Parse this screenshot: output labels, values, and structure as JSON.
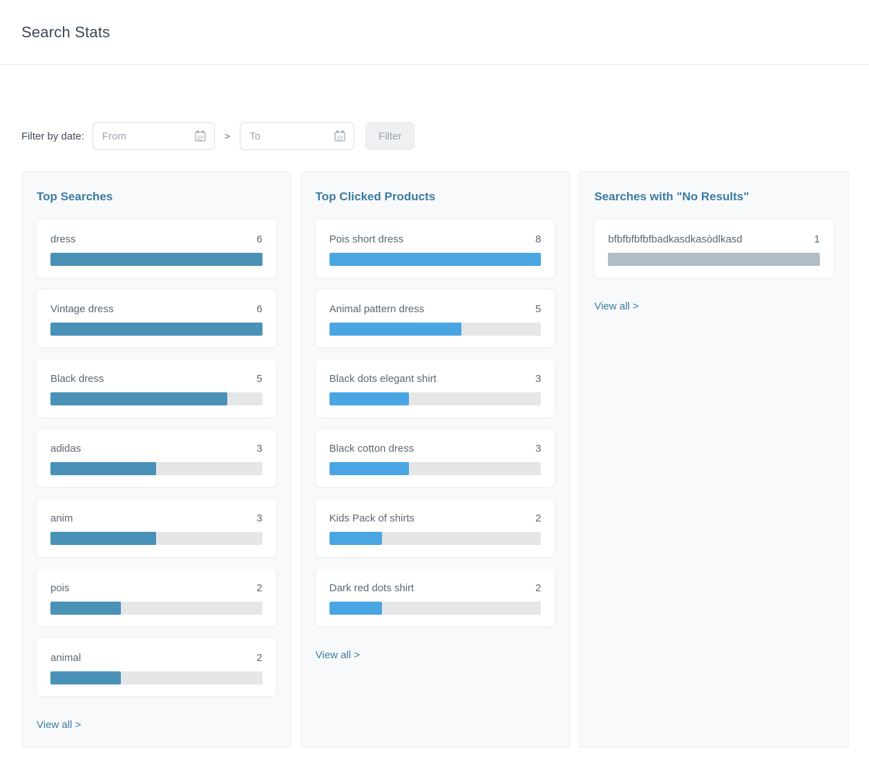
{
  "header": {
    "title": "Search Stats"
  },
  "filter": {
    "label": "Filter by date:",
    "from_placeholder": "From",
    "to_placeholder": "To",
    "separator": ">",
    "button_label": "Filter"
  },
  "colors": {
    "heading_blue": "#3a7ba2",
    "searches_bar": "#4a91b8",
    "clicked_bar": "#4aa6e2",
    "no_results_bar": "#b2bec7",
    "bar_track": "#e5e6e7"
  },
  "panels": {
    "top_searches": {
      "title": "Top Searches",
      "view_all": "View all >",
      "max": 6,
      "bar_color": "#4a91b8",
      "items": [
        {
          "label": "dress",
          "count": 6
        },
        {
          "label": "Vintage dress",
          "count": 6
        },
        {
          "label": "Black dress",
          "count": 5
        },
        {
          "label": "adidas",
          "count": 3
        },
        {
          "label": "anim",
          "count": 3
        },
        {
          "label": "pois",
          "count": 2
        },
        {
          "label": "animal",
          "count": 2
        }
      ]
    },
    "top_clicked": {
      "title": "Top Clicked Products",
      "view_all": "View all >",
      "max": 8,
      "bar_color": "#4aa6e2",
      "items": [
        {
          "label": "Pois short dress",
          "count": 8
        },
        {
          "label": "Animal pattern dress",
          "count": 5
        },
        {
          "label": "Black dots elegant shirt",
          "count": 3
        },
        {
          "label": "Black cotton dress",
          "count": 3
        },
        {
          "label": "Kids Pack of shirts",
          "count": 2
        },
        {
          "label": "Dark red dots shirt",
          "count": 2
        }
      ]
    },
    "no_results": {
      "title": "Searches with \"No Results\"",
      "view_all": "View all >",
      "max": 1,
      "bar_color": "#b2bec7",
      "items": [
        {
          "label": "bfbfbfbfbfbadkasdkasòdlkasd",
          "count": 1
        }
      ]
    }
  }
}
